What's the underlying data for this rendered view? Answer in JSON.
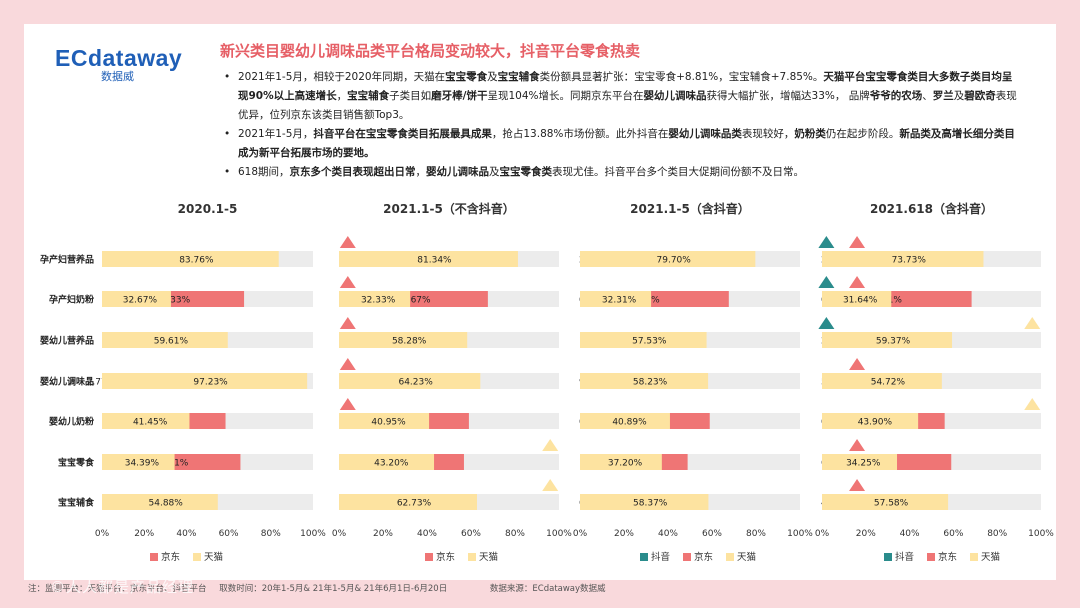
{
  "logo": {
    "word": "ECdataway",
    "sub": "数据威"
  },
  "headline": "新兴类目婴幼儿调味品类平台格局变动较大，抖音平台零食热卖",
  "bullets": [
    [
      {
        "t": "2021年1-5月，相较于2020年同期，天猫在"
      },
      {
        "t": "宝宝零食",
        "b": true
      },
      {
        "t": "及"
      },
      {
        "t": "宝宝辅食",
        "b": true
      },
      {
        "t": "类份额具显著扩张：宝宝零食+8.81%，宝宝辅食+7.85%。"
      },
      {
        "t": "天猫平台宝宝零食类目大多数子类目均呈现90%以上高速增长",
        "b": true
      },
      {
        "t": "，"
      },
      {
        "t": "宝宝辅食",
        "b": true
      },
      {
        "t": "子类目如"
      },
      {
        "t": "磨牙棒/饼干",
        "b": true
      },
      {
        "t": "呈现104%增长。同期京东平台在"
      },
      {
        "t": "婴幼儿调味品",
        "b": true
      },
      {
        "t": "获得大幅扩张，增幅达33%， 品牌"
      },
      {
        "t": "爷爷的农场",
        "b": true
      },
      {
        "t": "、"
      },
      {
        "t": "罗兰",
        "b": true
      },
      {
        "t": "及"
      },
      {
        "t": "碧欧奇",
        "b": true
      },
      {
        "t": "表现优异，位列京东该类目销售额Top3。"
      }
    ],
    [
      {
        "t": "2021年1-5月，"
      },
      {
        "t": "抖音平台在宝宝零食类目拓展最具成果",
        "b": true
      },
      {
        "t": "，抢占13.88%市场份额。此外抖音在"
      },
      {
        "t": "婴幼儿调味品类",
        "b": true
      },
      {
        "t": "表现较好，"
      },
      {
        "t": "奶粉类",
        "b": true
      },
      {
        "t": "仍在起步阶段。"
      },
      {
        "t": "新品类及高增长细分类目成为新平台拓展市场的要地。",
        "b": true
      }
    ],
    [
      {
        "t": "618期间，"
      },
      {
        "t": "京东多个类目表现超出日常",
        "b": true
      },
      {
        "t": "，"
      },
      {
        "t": "婴幼儿调味品",
        "b": true
      },
      {
        "t": "及"
      },
      {
        "t": "宝宝零食类",
        "b": true
      },
      {
        "t": "表现尤佳。抖音平台多个类目大促期间份额不及日常。"
      }
    ]
  ],
  "colors": {
    "douyin": "#2a8c8c",
    "jd": "#ef7575",
    "tmall": "#fde3a0",
    "bar_bg": "#ececec",
    "up_jd": "#ef7575",
    "up_tmall": "#fde3a0",
    "up_douyin": "#2a8c8c",
    "headline": "#e65f66"
  },
  "chart_data": [
    {
      "type": "bar",
      "stacked": true,
      "orientation": "horizontal",
      "title": "2020.1-5",
      "categories": [
        "孕产妇营养品",
        "孕产妇奶粉",
        "婴幼儿营养品",
        "婴幼儿调味品",
        "婴幼儿奶粉",
        "宝宝零食",
        "宝宝辅食"
      ],
      "series": [
        {
          "name": "京东",
          "key": "jd",
          "values": [
            16.24,
            67.33,
            40.39,
            2.77,
            58.55,
            65.61,
            45.12
          ]
        },
        {
          "name": "天猫",
          "key": "tmall",
          "values": [
            83.76,
            32.67,
            59.61,
            97.23,
            41.45,
            34.39,
            54.88
          ]
        }
      ],
      "xlim": [
        0,
        100
      ],
      "xticks": [
        "0%",
        "20%",
        "40%",
        "60%",
        "80%",
        "100%"
      ],
      "markers": []
    },
    {
      "type": "bar",
      "stacked": true,
      "orientation": "horizontal",
      "title": "2021.1-5（不含抖音）",
      "categories": [
        "孕产妇营养品",
        "孕产妇奶粉",
        "婴幼儿营养品",
        "婴幼儿调味品",
        "婴幼儿奶粉",
        "宝宝零食",
        "宝宝辅食"
      ],
      "series": [
        {
          "name": "京东",
          "key": "jd",
          "values": [
            18.66,
            67.67,
            41.72,
            35.77,
            59.05,
            56.8,
            37.27
          ]
        },
        {
          "name": "天猫",
          "key": "tmall",
          "values": [
            81.34,
            32.33,
            58.28,
            64.23,
            40.95,
            43.2,
            62.73
          ]
        }
      ],
      "xlim": [
        0,
        100
      ],
      "xticks": [
        "0%",
        "20%",
        "40%",
        "60%",
        "80%",
        "100%"
      ],
      "markers": [
        {
          "row": 0,
          "series": "jd",
          "at": 4
        },
        {
          "row": 1,
          "series": "jd",
          "at": 4
        },
        {
          "row": 2,
          "series": "jd",
          "at": 4
        },
        {
          "row": 3,
          "series": "jd",
          "at": 4
        },
        {
          "row": 4,
          "series": "jd",
          "at": 4
        },
        {
          "row": 5,
          "series": "tmall",
          "at": 96
        },
        {
          "row": 6,
          "series": "tmall",
          "at": 96
        }
      ]
    },
    {
      "type": "bar",
      "stacked": true,
      "orientation": "horizontal",
      "title": "2021.1-5（含抖音）",
      "categories": [
        "孕产妇营养品",
        "孕产妇奶粉",
        "婴幼儿营养品",
        "婴幼儿调味品",
        "婴幼儿奶粉",
        "宝宝零食",
        "宝宝辅食"
      ],
      "series": [
        {
          "name": "抖音",
          "key": "douyin",
          "values": [
            2.02,
            0.04,
            1.3,
            9.34,
            0.14,
            13.88,
            6.96
          ]
        },
        {
          "name": "京东",
          "key": "jd",
          "values": [
            18.28,
            67.64,
            41.17,
            32.43,
            58.97,
            48.92,
            34.68
          ]
        },
        {
          "name": "天猫",
          "key": "tmall",
          "values": [
            79.7,
            32.31,
            57.53,
            58.23,
            40.89,
            37.2,
            58.37
          ]
        }
      ],
      "xlim": [
        0,
        100
      ],
      "xticks": [
        "0%",
        "20%",
        "40%",
        "60%",
        "80%",
        "100%"
      ],
      "markers": []
    },
    {
      "type": "bar",
      "stacked": true,
      "orientation": "horizontal",
      "title": "2021.618（含抖音）",
      "categories": [
        "孕产妇营养品",
        "孕产妇奶粉",
        "婴幼儿营养品",
        "婴幼儿调味品",
        "婴幼儿奶粉",
        "宝宝零食",
        "宝宝辅食"
      ],
      "series": [
        {
          "name": "抖音",
          "key": "douyin",
          "values": [
            2.83,
            0.06,
            2.1,
            5.82,
            0.1,
            6.74,
            4.84
          ]
        },
        {
          "name": "京东",
          "key": "jd",
          "values": [
            23.44,
            68.31,
            38.53,
            39.47,
            56.01,
            59.02,
            37.58
          ]
        },
        {
          "name": "天猫",
          "key": "tmall",
          "values": [
            73.73,
            31.64,
            59.37,
            54.72,
            43.9,
            34.25,
            57.58
          ]
        }
      ],
      "xlim": [
        0,
        100
      ],
      "xticks": [
        "0%",
        "20%",
        "40%",
        "60%",
        "80%",
        "100%"
      ],
      "markers": [
        {
          "row": 0,
          "series": "douyin",
          "at": 2
        },
        {
          "row": 0,
          "series": "jd",
          "at": 16
        },
        {
          "row": 1,
          "series": "douyin",
          "at": 2
        },
        {
          "row": 1,
          "series": "jd",
          "at": 16
        },
        {
          "row": 2,
          "series": "douyin",
          "at": 2
        },
        {
          "row": 2,
          "series": "tmall",
          "at": 96
        },
        {
          "row": 3,
          "series": "jd",
          "at": 16
        },
        {
          "row": 4,
          "series": "tmall",
          "at": 96
        },
        {
          "row": 5,
          "series": "jd",
          "at": 16
        },
        {
          "row": 6,
          "series": "jd",
          "at": 16
        }
      ]
    }
  ],
  "footer": {
    "note": "注：监测平台：天猫平台、京东平台、抖音平台",
    "time": "取数时间：20年1-5月& 21年1-5月& 21年6月1日-6月20日",
    "source": "数据来源：ECdataway数据威"
  },
  "watermark": "©人人都是产品经理"
}
